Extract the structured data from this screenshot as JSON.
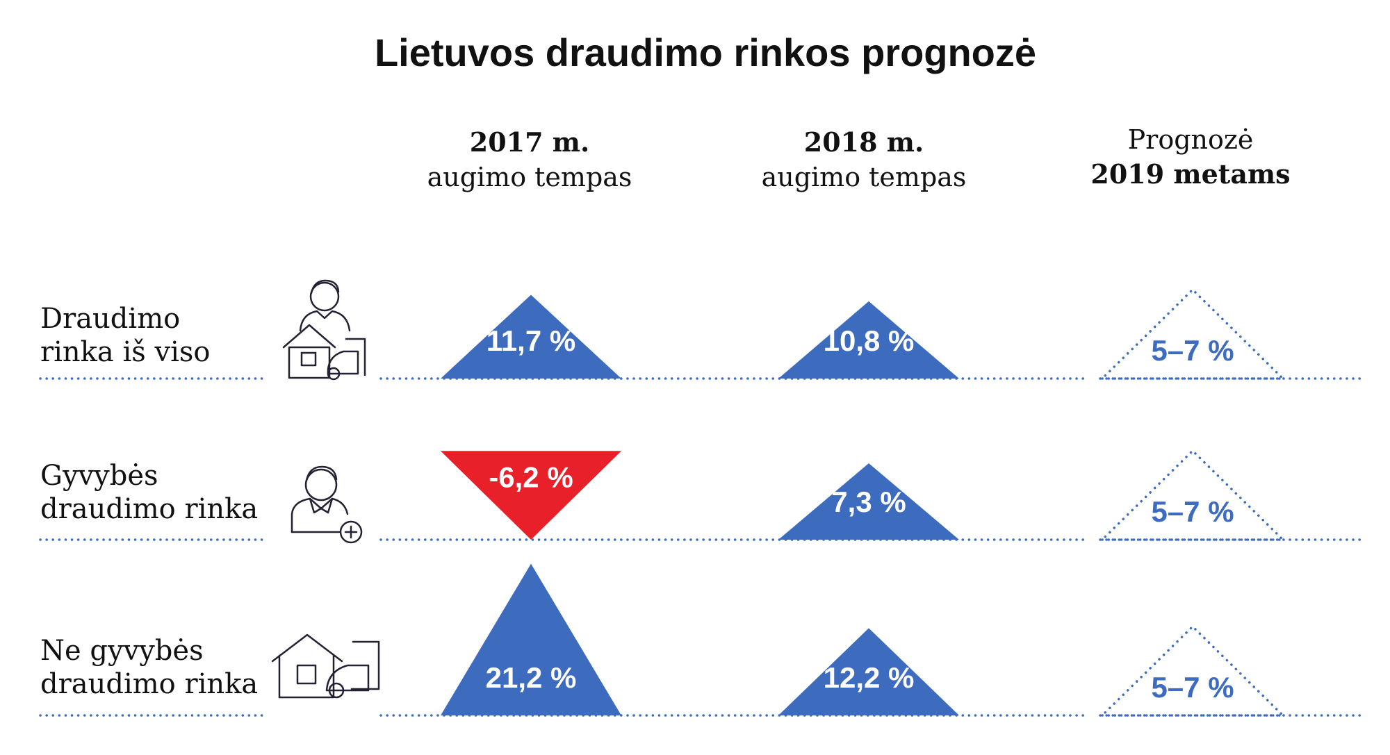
{
  "title": "Lietuvos draudimo rinkos prognozė",
  "columns": [
    {
      "line1": "2017 m.",
      "line2": "augimo tempas"
    },
    {
      "line1": "2018 m.",
      "line2": "augimo tempas"
    },
    {
      "line1": "Prognozė",
      "line2": "2019 metams"
    }
  ],
  "colors": {
    "positive": "#3d6cbf",
    "negative": "#e8202a",
    "forecast": "#3d6cbf",
    "text": "#111111"
  },
  "chart_data": {
    "type": "table",
    "title": "Lietuvos draudimo rinkos prognozė",
    "columns": [
      "2017 m. augimo tempas",
      "2018 m. augimo tempas",
      "Prognozė 2019 metams"
    ],
    "rows": [
      {
        "label_line1": "Draudimo",
        "label_line2": "rinka iš viso",
        "icon": "person-house-car-icon",
        "cells": [
          {
            "value": 11.7,
            "label": "11,7 %",
            "kind": "up"
          },
          {
            "value": 10.8,
            "label": "10,8 %",
            "kind": "up"
          },
          {
            "value_range": [
              5,
              7
            ],
            "label": "5–7 %",
            "kind": "forecast"
          }
        ]
      },
      {
        "label_line1": "Gyvybės",
        "label_line2": "draudimo rinka",
        "icon": "person-plus-icon",
        "cells": [
          {
            "value": -6.2,
            "label": "-6,2 %",
            "kind": "down"
          },
          {
            "value": 7.3,
            "label": "7,3 %",
            "kind": "up"
          },
          {
            "value_range": [
              5,
              7
            ],
            "label": "5–7 %",
            "kind": "forecast"
          }
        ]
      },
      {
        "label_line1": "Ne gyvybės",
        "label_line2": "draudimo rinka",
        "icon": "house-car-icon",
        "cells": [
          {
            "value": 21.2,
            "label": "21,2 %",
            "kind": "up"
          },
          {
            "value": 12.2,
            "label": "12,2 %",
            "kind": "up"
          },
          {
            "value_range": [
              5,
              7
            ],
            "label": "5–7 %",
            "kind": "forecast"
          }
        ]
      }
    ]
  }
}
